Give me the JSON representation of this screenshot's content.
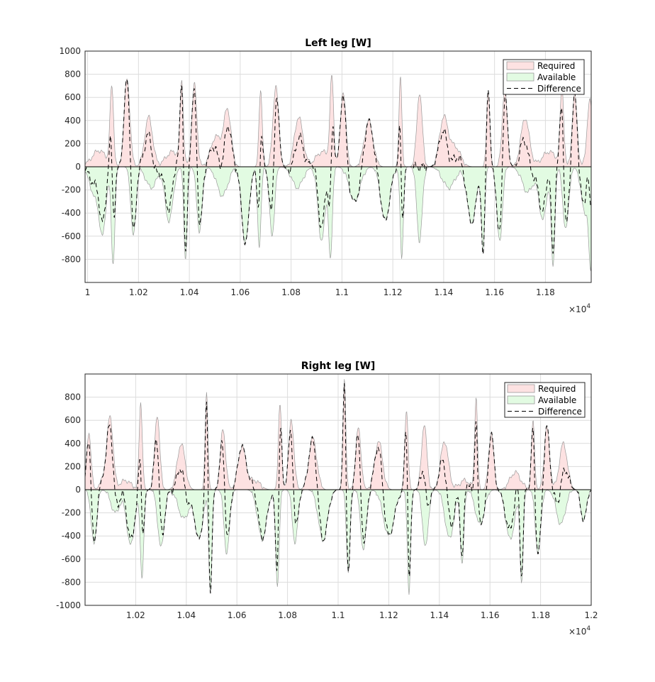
{
  "chart_data": [
    {
      "type": "area",
      "title": "Left leg [W]",
      "xlabel": "",
      "ylabel": "",
      "xlim": [
        9990,
        11980
      ],
      "ylim": [
        -1000,
        1000
      ],
      "x_multiplier_label": "×10",
      "x_multiplier_exp": "4",
      "xticks": [
        10000,
        10200,
        10400,
        10600,
        10800,
        11000,
        11200,
        11400,
        11600,
        11800
      ],
      "xtick_labels": [
        "1",
        "1.02",
        "1.04",
        "1.06",
        "1.08",
        "1.1",
        "1.12",
        "1.14",
        "1.16",
        "1.18"
      ],
      "yticks": [
        -800,
        -600,
        -400,
        -200,
        0,
        200,
        400,
        600,
        800,
        1000
      ],
      "ytick_labels": [
        "-800",
        "-600",
        "-400",
        "-200",
        "0",
        "200",
        "400",
        "600",
        "800",
        "1000"
      ],
      "grid": true,
      "legend_position": "top-right",
      "legend": [
        "Required",
        "Available",
        "Difference"
      ],
      "colors": {
        "required": "#fde2e2",
        "available": "#e2fbe2",
        "outline": "#9a9a9a",
        "difference": "#000000"
      },
      "peaks": [
        [
          10045,
          140,
          40
        ],
        [
          10095,
          670,
          10
        ],
        [
          10155,
          760,
          16
        ],
        [
          10240,
          430,
          22
        ],
        [
          10335,
          130,
          40
        ],
        [
          10370,
          700,
          9
        ],
        [
          10420,
          710,
          14
        ],
        [
          10505,
          260,
          30
        ],
        [
          10550,
          480,
          20
        ],
        [
          10680,
          660,
          9
        ],
        [
          10740,
          700,
          16
        ],
        [
          10830,
          430,
          24
        ],
        [
          10925,
          130,
          40
        ],
        [
          10960,
          730,
          10
        ],
        [
          11005,
          650,
          15
        ],
        [
          11105,
          400,
          24
        ],
        [
          11230,
          770,
          8
        ],
        [
          11305,
          640,
          15
        ],
        [
          11400,
          420,
          24
        ],
        [
          11445,
          170,
          30
        ],
        [
          11575,
          670,
          9
        ],
        [
          11640,
          680,
          14
        ],
        [
          11720,
          420,
          24
        ],
        [
          11815,
          130,
          40
        ],
        [
          11865,
          680,
          10
        ],
        [
          11915,
          620,
          14
        ],
        [
          11975,
          570,
          16
        ]
      ],
      "valleys": [
        [
          10030,
          -250,
          30
        ],
        [
          10060,
          -500,
          18
        ],
        [
          10100,
          -840,
          10
        ],
        [
          10180,
          -600,
          14
        ],
        [
          10250,
          -180,
          30
        ],
        [
          10320,
          -470,
          22
        ],
        [
          10385,
          -820,
          9
        ],
        [
          10440,
          -560,
          15
        ],
        [
          10530,
          -250,
          30
        ],
        [
          10620,
          -650,
          20
        ],
        [
          10675,
          -680,
          10
        ],
        [
          10725,
          -600,
          14
        ],
        [
          10825,
          -180,
          30
        ],
        [
          10920,
          -640,
          20
        ],
        [
          10955,
          -780,
          10
        ],
        [
          11050,
          -300,
          30
        ],
        [
          11170,
          -460,
          25
        ],
        [
          11235,
          -790,
          9
        ],
        [
          11305,
          -640,
          15
        ],
        [
          11420,
          -180,
          35
        ],
        [
          11510,
          -480,
          25
        ],
        [
          11555,
          -740,
          9
        ],
        [
          11620,
          -650,
          15
        ],
        [
          11730,
          -220,
          30
        ],
        [
          11790,
          -450,
          22
        ],
        [
          11830,
          -860,
          10
        ],
        [
          11880,
          -540,
          16
        ],
        [
          11955,
          -400,
          20
        ],
        [
          11978,
          -800,
          10
        ]
      ]
    },
    {
      "type": "area",
      "title": "Right leg [W]",
      "xlabel": "",
      "ylabel": "",
      "xlim": [
        10000,
        12000
      ],
      "ylim": [
        -1000,
        1000
      ],
      "x_multiplier_label": "×10",
      "x_multiplier_exp": "4",
      "xticks": [
        10200,
        10400,
        10600,
        10800,
        11000,
        11200,
        11400,
        11600,
        11800,
        12000
      ],
      "xtick_labels": [
        "1.02",
        "1.04",
        "1.06",
        "1.08",
        "1.1",
        "1.12",
        "1.14",
        "1.16",
        "1.18",
        "1.2"
      ],
      "yticks": [
        -1000,
        -800,
        -600,
        -400,
        -200,
        0,
        200,
        400,
        600,
        800
      ],
      "ytick_labels": [
        "-1000",
        "-800",
        "-600",
        "-400",
        "-200",
        "0",
        "200",
        "400",
        "600",
        "800"
      ],
      "grid": true,
      "legend_position": "top-right",
      "legend": [
        "Required",
        "Available",
        "Difference"
      ],
      "colors": {
        "required": "#fde2e2",
        "available": "#e2fbe2",
        "outline": "#9a9a9a",
        "difference": "#000000"
      },
      "peaks": [
        [
          10015,
          500,
          12
        ],
        [
          10090,
          230,
          25
        ],
        [
          10100,
          440,
          15
        ],
        [
          10160,
          80,
          30
        ],
        [
          10220,
          750,
          9
        ],
        [
          10285,
          650,
          14
        ],
        [
          10380,
          400,
          22
        ],
        [
          10480,
          820,
          8
        ],
        [
          10545,
          520,
          15
        ],
        [
          10620,
          370,
          22
        ],
        [
          10670,
          80,
          30
        ],
        [
          10770,
          750,
          9
        ],
        [
          10815,
          600,
          15
        ],
        [
          10900,
          450,
          22
        ],
        [
          11025,
          950,
          8
        ],
        [
          11080,
          530,
          15
        ],
        [
          11160,
          420,
          22
        ],
        [
          11270,
          700,
          9
        ],
        [
          11340,
          560,
          15
        ],
        [
          11420,
          420,
          22
        ],
        [
          11500,
          80,
          30
        ],
        [
          11545,
          800,
          8
        ],
        [
          11605,
          500,
          14
        ],
        [
          11700,
          150,
          30
        ],
        [
          11770,
          590,
          9
        ],
        [
          11825,
          540,
          15
        ],
        [
          11890,
          400,
          22
        ]
      ],
      "valleys": [
        [
          10035,
          -470,
          15
        ],
        [
          10120,
          -200,
          25
        ],
        [
          10180,
          -480,
          22
        ],
        [
          10225,
          -740,
          10
        ],
        [
          10300,
          -500,
          18
        ],
        [
          10390,
          -250,
          30
        ],
        [
          10450,
          -420,
          22
        ],
        [
          10495,
          -880,
          9
        ],
        [
          10560,
          -550,
          15
        ],
        [
          10700,
          -430,
          25
        ],
        [
          10760,
          -820,
          10
        ],
        [
          10830,
          -460,
          15
        ],
        [
          10940,
          -440,
          25
        ],
        [
          11040,
          -720,
          10
        ],
        [
          11100,
          -520,
          16
        ],
        [
          11200,
          -400,
          30
        ],
        [
          11280,
          -900,
          9
        ],
        [
          11345,
          -500,
          16
        ],
        [
          11440,
          -420,
          25
        ],
        [
          11490,
          -640,
          10
        ],
        [
          11560,
          -300,
          25
        ],
        [
          11680,
          -430,
          25
        ],
        [
          11725,
          -790,
          9
        ],
        [
          11790,
          -550,
          15
        ],
        [
          11880,
          -300,
          25
        ],
        [
          11970,
          -270,
          15
        ]
      ]
    }
  ]
}
